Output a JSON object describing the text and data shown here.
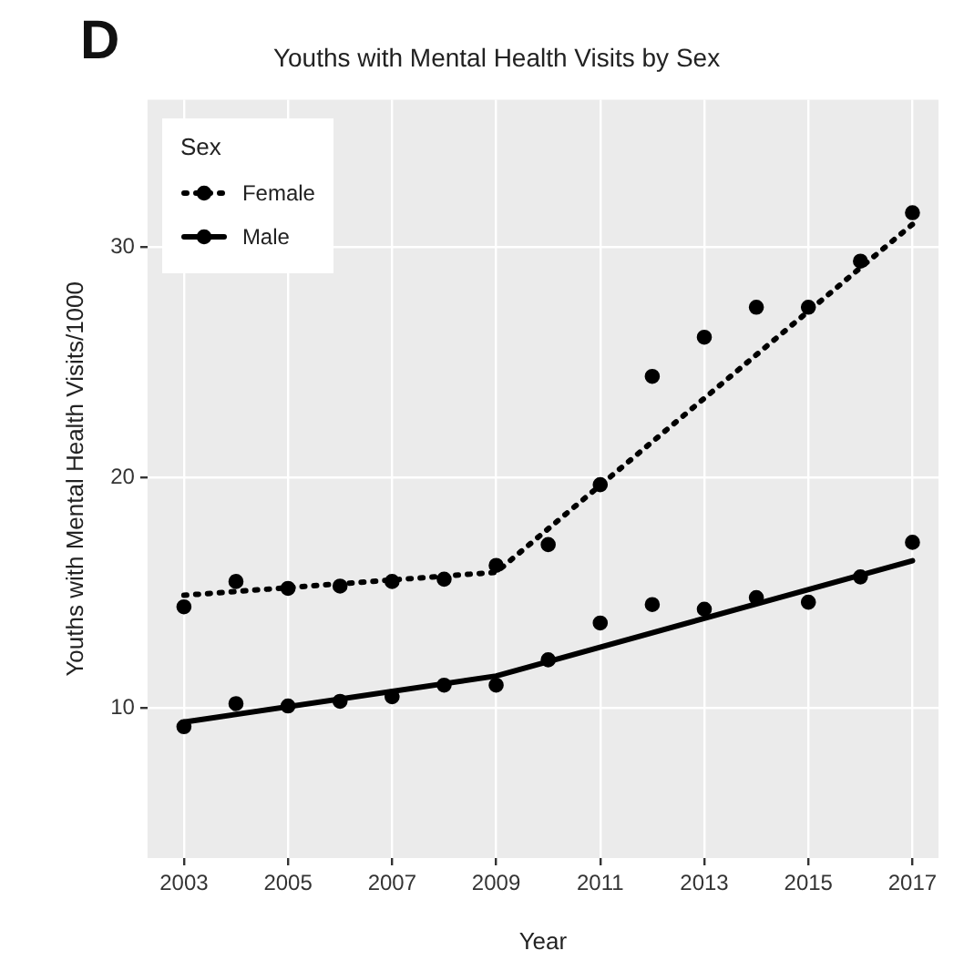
{
  "chart_data": {
    "type": "scatter",
    "title": "Youths with Mental Health Visits by Sex",
    "xlabel": "Year",
    "ylabel": "Youths with Mental Health Visits/1000",
    "legend_title": "Sex",
    "annotations": [
      "D"
    ],
    "xlim": [
      2002.3,
      2017.5
    ],
    "xticks": [
      2003,
      2005,
      2007,
      2009,
      2011,
      2013,
      2015,
      2017
    ],
    "ylim": [
      3.5,
      36.4
    ],
    "yticks": [
      10,
      20,
      30
    ],
    "grid": true,
    "legend": "top left",
    "series": [
      {
        "color": "#000000",
        "marker": "circle",
        "x": [
          2003,
          2004,
          2005,
          2006,
          2007,
          2008,
          2009,
          2010,
          2011,
          2012,
          2013,
          2014,
          2015,
          2016,
          2017
        ],
        "values": [
          14.4,
          15.5,
          15.2,
          15.3,
          15.5,
          15.6,
          16.2,
          17.1,
          19.7,
          24.4,
          26.1,
          27.4,
          27.4,
          29.4,
          31.5
        ]
      },
      {
        "type": "line",
        "name": "Female",
        "color": "#000000",
        "marker": "none",
        "line_style": "dotted",
        "x": [
          2003,
          2009,
          2017
        ],
        "values": [
          14.9,
          15.9,
          31.0
        ]
      },
      {
        "color": "#000000",
        "marker": "circle",
        "x": [
          2003,
          2004,
          2005,
          2006,
          2007,
          2008,
          2009,
          2010,
          2011,
          2012,
          2013,
          2014,
          2015,
          2016,
          2017
        ],
        "values": [
          9.2,
          10.2,
          10.1,
          10.3,
          10.5,
          11.0,
          11.0,
          12.1,
          13.7,
          14.5,
          14.3,
          14.8,
          14.6,
          15.7,
          17.2
        ]
      },
      {
        "type": "line",
        "name": "Male",
        "color": "#000000",
        "marker": "none",
        "line_style": "solid",
        "x": [
          2003,
          2009,
          2017
        ],
        "values": [
          9.4,
          11.4,
          16.4
        ]
      }
    ]
  }
}
